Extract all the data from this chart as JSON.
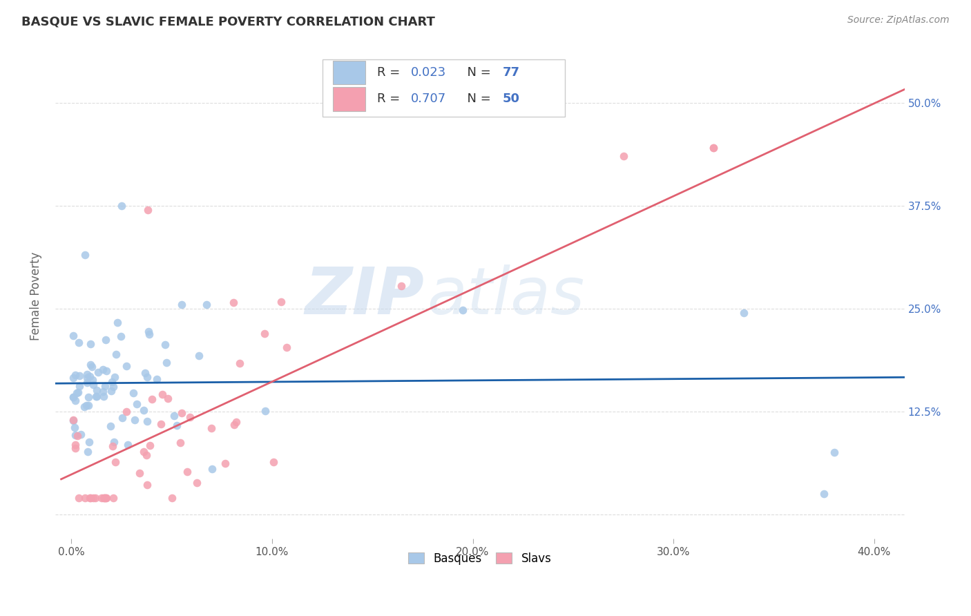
{
  "title": "BASQUE VS SLAVIC FEMALE POVERTY CORRELATION CHART",
  "source": "Source: ZipAtlas.com",
  "ylabel": "Female Poverty",
  "watermark_zip": "ZIP",
  "watermark_atlas": "atlas",
  "x_tick_positions": [
    0.0,
    0.1,
    0.2,
    0.3,
    0.4
  ],
  "x_tick_labels": [
    "0.0%",
    "10.0%",
    "20.0%",
    "30.0%",
    "40.0%"
  ],
  "y_tick_positions": [
    0.0,
    0.125,
    0.25,
    0.375,
    0.5
  ],
  "y_tick_labels": [
    "",
    "12.5%",
    "25.0%",
    "37.5%",
    "50.0%"
  ],
  "xlim": [
    -0.008,
    0.415
  ],
  "ylim": [
    -0.03,
    0.56
  ],
  "basque_scatter_color": "#a8c8e8",
  "slavic_scatter_color": "#f4a0b0",
  "basque_line_color": "#1a5fa8",
  "slavic_line_color": "#e06070",
  "basque_legend_color": "#a8c8e8",
  "slavic_legend_color": "#f4a0b0",
  "background_color": "#ffffff",
  "grid_color": "#dddddd",
  "basque_R": 0.023,
  "basque_N": 77,
  "slavic_R": 0.707,
  "slavic_N": 50,
  "right_tick_color": "#4472c4",
  "title_fontsize": 13,
  "source_fontsize": 10,
  "tick_fontsize": 11,
  "legend_fontsize": 13
}
